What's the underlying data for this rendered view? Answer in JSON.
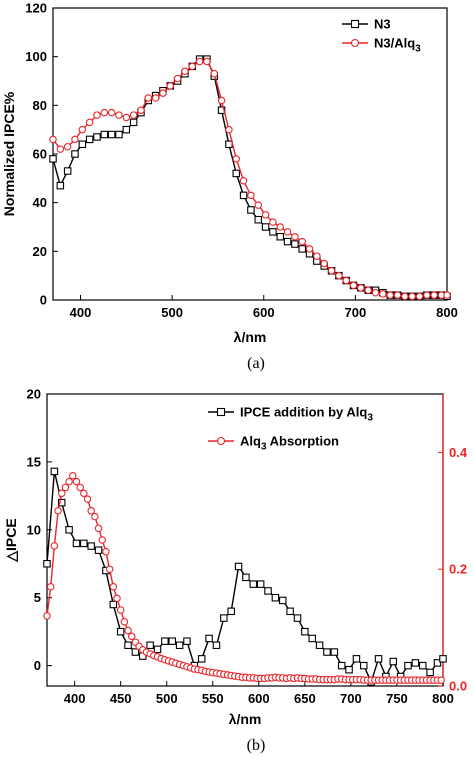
{
  "colors": {
    "n3": "#000000",
    "alq3": "#e8262b",
    "axis": "#000000",
    "right_axis": "#e8262b"
  },
  "chart_data": [
    {
      "type": "line",
      "caption": "(a)",
      "xlabel": "λ/nm",
      "ylabel": "Normalized IPCE%",
      "xlim": [
        370,
        800
      ],
      "ylim": [
        0,
        120
      ],
      "xticks": [
        "400",
        "500",
        "600",
        "700",
        "800"
      ],
      "yticks": [
        "0",
        "20",
        "40",
        "60",
        "80",
        "100",
        "120"
      ],
      "legend_position": "top-right",
      "legend_items": [
        {
          "text": "N3",
          "sub": ""
        },
        {
          "text": "N3/Alq",
          "sub": "3"
        }
      ],
      "series": [
        {
          "name": "N3",
          "marker": "square",
          "color_key": "n3",
          "x": [
            370,
            378,
            386,
            394,
            402,
            410,
            418,
            426,
            434,
            442,
            450,
            458,
            466,
            474,
            482,
            490,
            498,
            506,
            514,
            522,
            530,
            538,
            546,
            554,
            562,
            570,
            578,
            586,
            594,
            602,
            610,
            618,
            626,
            634,
            642,
            650,
            658,
            666,
            674,
            682,
            690,
            698,
            706,
            714,
            722,
            730,
            738,
            746,
            754,
            762,
            770,
            778,
            786,
            794,
            800
          ],
          "y": [
            58,
            47,
            53,
            60,
            64,
            66,
            67,
            68,
            68,
            68,
            70,
            73,
            77,
            82,
            84,
            86,
            88,
            90,
            93,
            96,
            99,
            99,
            92,
            78,
            64,
            52,
            43,
            37,
            33,
            30,
            28,
            26,
            24,
            23,
            21,
            19,
            16,
            14,
            12,
            10,
            8,
            6,
            5,
            4,
            4,
            3,
            2,
            2,
            1.5,
            1.5,
            1.5,
            2,
            2,
            2,
            1.5
          ]
        },
        {
          "name": "N3/Alq3",
          "marker": "circle",
          "color_key": "alq3",
          "x": [
            370,
            378,
            386,
            394,
            402,
            410,
            418,
            426,
            434,
            442,
            450,
            458,
            466,
            474,
            482,
            490,
            498,
            506,
            514,
            522,
            530,
            538,
            546,
            554,
            562,
            570,
            578,
            586,
            594,
            602,
            610,
            618,
            626,
            634,
            642,
            650,
            658,
            666,
            674,
            682,
            690,
            698,
            706,
            714,
            722,
            730,
            738,
            746,
            754,
            762,
            770,
            778,
            786,
            794,
            800
          ],
          "y": [
            66,
            62,
            63,
            66,
            70,
            73,
            76,
            77,
            77,
            76,
            75,
            76,
            78,
            83,
            83,
            85,
            88,
            91,
            94,
            96,
            98,
            98,
            93,
            82,
            70,
            58,
            49,
            43,
            39,
            35,
            32,
            30,
            28,
            26,
            24,
            21,
            18,
            15,
            12,
            10,
            8,
            6,
            5,
            4,
            3,
            2.5,
            2,
            2,
            1.5,
            1.5,
            1.5,
            2,
            2,
            2,
            2
          ]
        }
      ]
    },
    {
      "type": "line",
      "caption": "(b)",
      "xlabel": "λ/nm",
      "ylabel": "△IPCE",
      "xlim": [
        370,
        800
      ],
      "ylim": [
        -1.5,
        20
      ],
      "y2lim": [
        0,
        0.5
      ],
      "xticks": [
        "400",
        "450",
        "500",
        "550",
        "600",
        "650",
        "700",
        "750",
        "800"
      ],
      "yticks": [
        "0",
        "5",
        "10",
        "15",
        "20"
      ],
      "y2ticks": [
        "0.0",
        "0.2",
        "0.4"
      ],
      "legend_position": "top-right",
      "legend_items": [
        {
          "text": "IPCE addition by Alq",
          "sub": "3"
        },
        {
          "text": "Alq",
          "sub": "3",
          "tail": " Absorption"
        }
      ],
      "series": [
        {
          "name": "IPCE addition by Alq3",
          "marker": "square",
          "axis": "left",
          "color_key": "n3",
          "x": [
            370,
            378,
            386,
            394,
            402,
            410,
            418,
            426,
            434,
            442,
            450,
            458,
            466,
            474,
            482,
            490,
            498,
            506,
            514,
            522,
            530,
            538,
            546,
            554,
            562,
            570,
            578,
            586,
            594,
            602,
            610,
            618,
            626,
            634,
            642,
            650,
            658,
            666,
            674,
            682,
            690,
            698,
            706,
            714,
            722,
            730,
            738,
            746,
            754,
            762,
            770,
            778,
            786,
            794,
            800
          ],
          "y": [
            7.5,
            14.3,
            12.0,
            10.0,
            9.0,
            9.0,
            8.8,
            8.5,
            7.0,
            4.5,
            2.5,
            1.5,
            1.0,
            0.7,
            1.5,
            1.2,
            1.8,
            1.8,
            1.5,
            1.8,
            0.0,
            0.5,
            2.0,
            1.5,
            3.5,
            4.0,
            7.3,
            6.5,
            6.0,
            6.0,
            5.5,
            5.0,
            4.8,
            4.0,
            3.5,
            2.5,
            2.0,
            1.5,
            1.0,
            1.0,
            0.0,
            -0.3,
            0.5,
            0.0,
            -1.2,
            0.5,
            -0.8,
            0.3,
            -0.8,
            0.0,
            0.2,
            0.0,
            -0.5,
            0.2,
            0.5
          ]
        },
        {
          "name": "Alq3 Absorption",
          "marker": "circle",
          "axis": "right",
          "color_key": "alq3",
          "x": [
            370,
            374,
            378,
            382,
            386,
            390,
            394,
            398,
            402,
            406,
            410,
            414,
            418,
            422,
            426,
            430,
            434,
            438,
            442,
            446,
            450,
            454,
            458,
            462,
            466,
            470,
            474,
            478,
            482,
            486,
            490,
            494,
            498,
            502,
            506,
            510,
            514,
            518,
            522,
            526,
            530,
            534,
            538,
            542,
            546,
            550,
            554,
            558,
            562,
            566,
            570,
            574,
            578,
            582,
            586,
            590,
            594,
            598,
            602,
            606,
            610,
            614,
            618,
            622,
            626,
            630,
            634,
            638,
            642,
            646,
            650,
            654,
            658,
            662,
            666,
            670,
            674,
            678,
            682,
            686,
            690,
            694,
            698,
            702,
            706,
            710,
            714,
            718,
            722,
            726,
            730,
            734,
            738,
            742,
            746,
            750,
            754,
            758,
            762,
            766,
            770,
            774,
            778,
            782,
            786,
            790,
            794,
            798
          ],
          "y": [
            0.12,
            0.17,
            0.24,
            0.3,
            0.33,
            0.34,
            0.35,
            0.36,
            0.35,
            0.34,
            0.33,
            0.32,
            0.3,
            0.29,
            0.27,
            0.25,
            0.23,
            0.2,
            0.17,
            0.15,
            0.13,
            0.11,
            0.095,
            0.085,
            0.075,
            0.068,
            0.062,
            0.058,
            0.055,
            0.052,
            0.05,
            0.047,
            0.045,
            0.043,
            0.041,
            0.039,
            0.037,
            0.035,
            0.033,
            0.031,
            0.029,
            0.028,
            0.027,
            0.025,
            0.024,
            0.023,
            0.022,
            0.021,
            0.02,
            0.019,
            0.018,
            0.017,
            0.016,
            0.015,
            0.015,
            0.014,
            0.014,
            0.013,
            0.013,
            0.013,
            0.014,
            0.014,
            0.015,
            0.014,
            0.014,
            0.013,
            0.014,
            0.013,
            0.014,
            0.013,
            0.013,
            0.012,
            0.012,
            0.012,
            0.011,
            0.011,
            0.011,
            0.011,
            0.011,
            0.012,
            0.012,
            0.011,
            0.011,
            0.011,
            0.011,
            0.011,
            0.01,
            0.01,
            0.01,
            0.01,
            0.01,
            0.01,
            0.01,
            0.01,
            0.01,
            0.01,
            0.01,
            0.01,
            0.01,
            0.01,
            0.01,
            0.01,
            0.01,
            0.01,
            0.01,
            0.01,
            0.01,
            0.01
          ]
        }
      ]
    }
  ]
}
